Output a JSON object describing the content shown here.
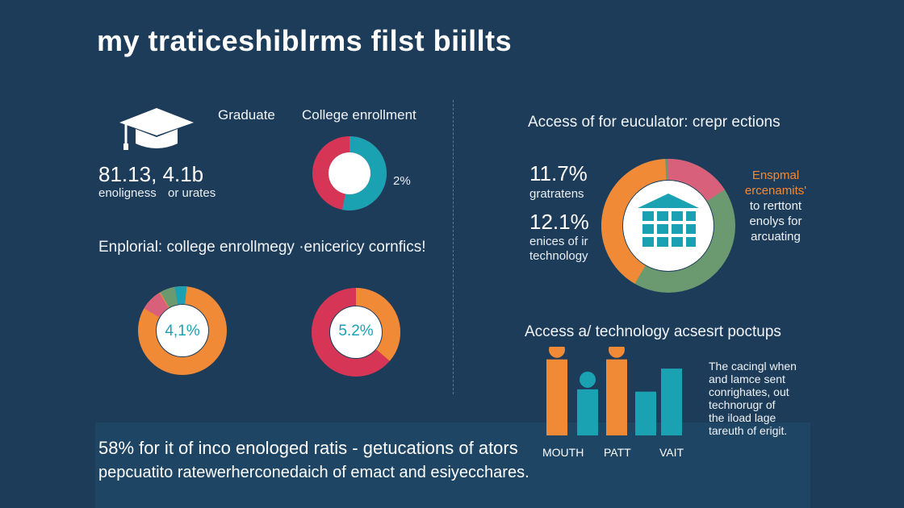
{
  "title": "my traticeshiblrms filst biillts",
  "left_top": {
    "graduate_label": "Graduate",
    "stat_value": "81.13, 4.1b",
    "stat_caption_a": "enoligness",
    "stat_caption_b": "or urates",
    "enrollment_label": "College enrollment",
    "enrollment_pct": "2%"
  },
  "left_mid": {
    "heading": "Enplorial: college enrollmegy ·enicericy cornfics!",
    "donut1_value": "4,1%",
    "donut2_value": "5.2%"
  },
  "right_top": {
    "heading": "Access of for euculator: crepr ections",
    "stat1_value": "11.7%",
    "stat1_caption": "gratratens",
    "stat2_value": "12.1%",
    "stat2_caption_line1": "enices of ir",
    "stat2_caption_line2": "technology",
    "side_title_line1": "Enspmal",
    "side_title_line2": "ercenamits'",
    "side_line1": "to rerttont",
    "side_line2": "enolys for",
    "side_line3": "arcuating"
  },
  "right_bottom": {
    "heading": "Access a/ technology acsesrt poctups",
    "labels": [
      "MOUTH",
      "PATT",
      "VAIT"
    ],
    "note_lines": [
      "The cacingl when",
      "and lamce sent",
      "conrighates, out",
      "technorugr of",
      "the iload lage",
      "tareuth of erigit."
    ]
  },
  "bottom": {
    "line1": "58% for it of inco enologed ratis - getucations of ators",
    "line2": "pepcuatito ratewerherconedaich of emact and esiyecchares."
  },
  "chart_data": {
    "type": "bar",
    "categories": [
      "MOUTH",
      "",
      "PATT",
      "",
      "VAIT"
    ],
    "series": [
      {
        "values": [
          66,
          40,
          66,
          38,
          58
        ]
      }
    ]
  },
  "colors": {
    "background": "#1d3c5a",
    "orange": "#f08a36",
    "teal": "#1aa2b3",
    "crimson": "#d63555",
    "green": "#6b9a70",
    "pink": "#d9607b"
  }
}
